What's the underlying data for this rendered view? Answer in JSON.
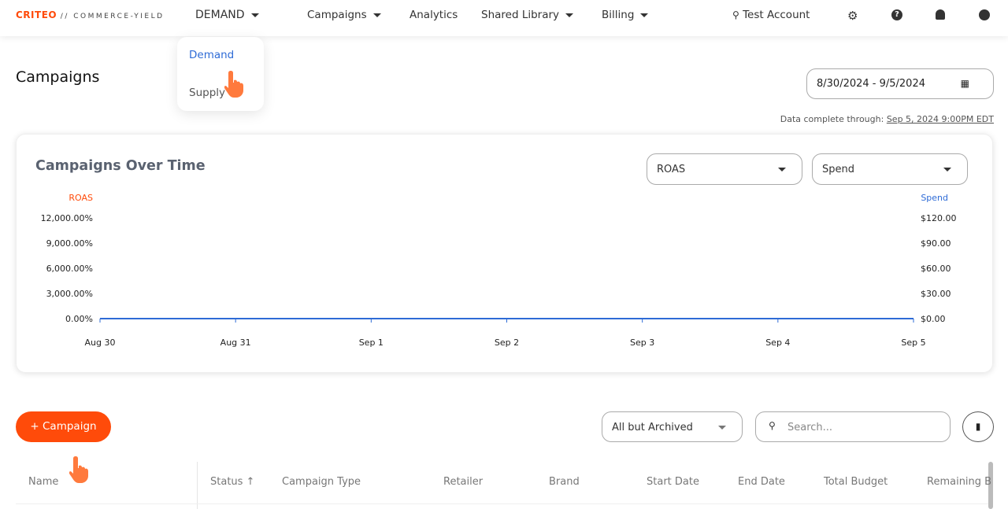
{
  "header": {
    "logo_brand": "CRITEO",
    "logo_product": "// COMMERCE-YIELD",
    "nav": [
      "DEMAND",
      "Campaigns",
      "Analytics",
      "Shared Library",
      "Billing"
    ],
    "account": "Test Account"
  },
  "dropdown": {
    "items": [
      "Demand",
      "Supply"
    ],
    "active": "Demand"
  },
  "page": {
    "title": "Campaigns",
    "date_range": "8/30/2024 - 9/5/2024",
    "data_complete_label": "Data complete through:",
    "data_complete_value": "Sep 5, 2024 9:00PM EDT"
  },
  "chart_card": {
    "title": "Campaigns Over Time",
    "metric1": "ROAS",
    "metric2": "Spend"
  },
  "chart_data": {
    "type": "line",
    "x": [
      "Aug 30",
      "Aug 31",
      "Sep 1",
      "Sep 2",
      "Sep 3",
      "Sep 4",
      "Sep 5"
    ],
    "series": [
      {
        "name": "ROAS",
        "values": [
          0,
          0,
          0,
          0,
          0,
          0,
          0
        ],
        "color": "#ff4b0a"
      },
      {
        "name": "Spend",
        "values": [
          0,
          0,
          0,
          0,
          0,
          0,
          0
        ],
        "color": "#2e6bd6"
      }
    ],
    "y_left": {
      "label": "ROAS",
      "ticks": [
        "0.00%",
        "3,000.00%",
        "6,000.00%",
        "9,000.00%",
        "12,000.00%"
      ],
      "ylim": [
        0,
        12000
      ]
    },
    "y_right": {
      "label": "Spend",
      "ticks": [
        "$0.00",
        "$30.00",
        "$60.00",
        "$90.00",
        "$120.00"
      ],
      "ylim": [
        0,
        120
      ]
    }
  },
  "table": {
    "add_button": "+ Campaign",
    "filter": "All but Archived",
    "search_placeholder": "Search...",
    "columns": [
      "Name",
      "Status",
      "Campaign Type",
      "Retailer",
      "Brand",
      "Start Date",
      "End Date",
      "Total Budget",
      "Remaining B"
    ]
  },
  "colors": {
    "accent": "#ff4b0a",
    "link": "#2e6bd6"
  }
}
